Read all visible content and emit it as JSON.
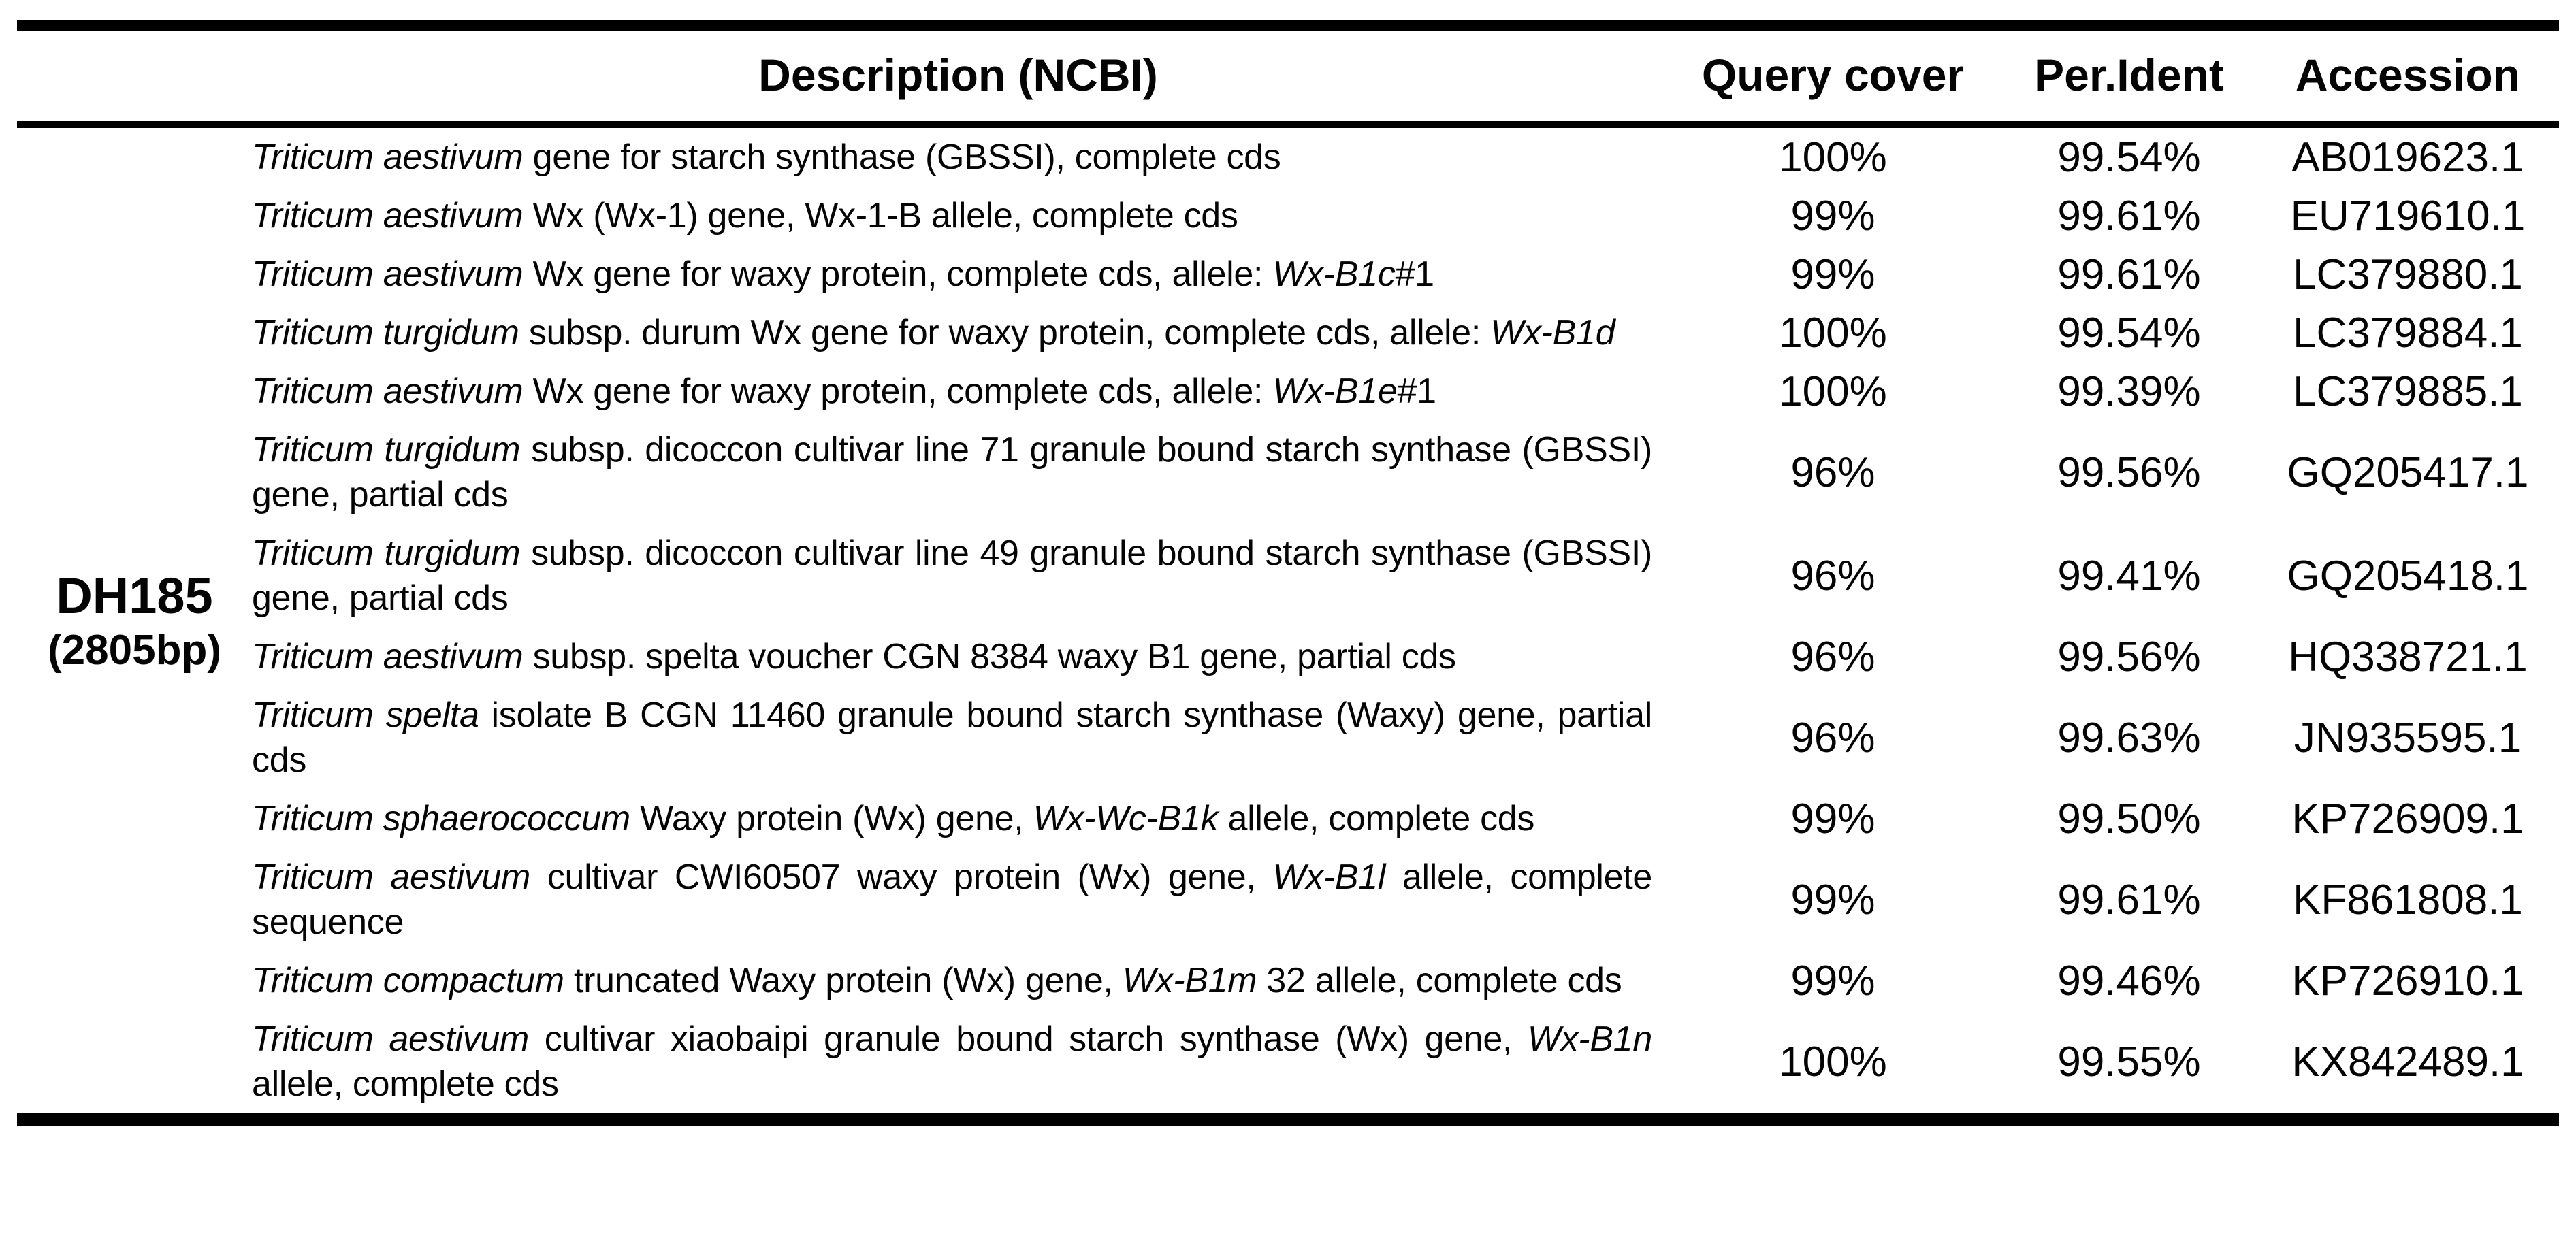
{
  "colors": {
    "background": "#ffffff",
    "text": "#040404",
    "rule": "#000000"
  },
  "table": {
    "stub": {
      "line1": "DH185",
      "line2": "(2805bp)"
    },
    "headers": {
      "description": "Description (NCBI)",
      "query_cover": "Query cover",
      "per_ident": "Per.Ident",
      "accession": "Accession"
    },
    "rows": [
      {
        "description": [
          {
            "i": true,
            "t": "Triticum aestivum"
          },
          {
            "t": " gene for starch synthase (GBSSI), complete cds"
          }
        ],
        "query_cover": "100%",
        "per_ident": "99.54%",
        "accession": "AB019623.1"
      },
      {
        "description": [
          {
            "i": true,
            "t": "Triticum aestivum"
          },
          {
            "t": " Wx (Wx-1) gene, Wx-1-B allele, complete cds"
          }
        ],
        "query_cover": "99%",
        "per_ident": "99.61%",
        "accession": "EU719610.1"
      },
      {
        "description": [
          {
            "i": true,
            "t": "Triticum aestivum"
          },
          {
            "t": " Wx gene for waxy protein, complete cds, allele: "
          },
          {
            "i": true,
            "t": "Wx-B1c"
          },
          {
            "t": "#1"
          }
        ],
        "query_cover": "99%",
        "per_ident": "99.61%",
        "accession": "LC379880.1"
      },
      {
        "description": [
          {
            "i": true,
            "t": "Triticum turgidum"
          },
          {
            "t": " subsp. durum Wx gene for waxy protein, complete cds, allele: "
          },
          {
            "i": true,
            "t": "Wx-B1d"
          }
        ],
        "query_cover": "100%",
        "per_ident": "99.54%",
        "accession": "LC379884.1"
      },
      {
        "description": [
          {
            "i": true,
            "t": "Triticum aestivum"
          },
          {
            "t": " Wx gene for waxy protein, complete cds, allele: "
          },
          {
            "i": true,
            "t": "Wx-B1e"
          },
          {
            "t": "#1"
          }
        ],
        "query_cover": "100%",
        "per_ident": "99.39%",
        "accession": "LC379885.1"
      },
      {
        "description": [
          {
            "i": true,
            "t": "Triticum turgidum"
          },
          {
            "t": " subsp. dicoccon cultivar line 71 granule bound starch synthase (GBSSI) gene, partial cds"
          }
        ],
        "query_cover": "96%",
        "per_ident": "99.56%",
        "accession": "GQ205417.1"
      },
      {
        "description": [
          {
            "i": true,
            "t": "Triticum turgidum"
          },
          {
            "t": " subsp. dicoccon cultivar line 49 granule bound starch synthase (GBSSI) gene, partial cds"
          }
        ],
        "query_cover": "96%",
        "per_ident": "99.41%",
        "accession": "GQ205418.1"
      },
      {
        "description": [
          {
            "i": true,
            "t": "Triticum aestivum"
          },
          {
            "t": " subsp. spelta voucher CGN 8384 waxy B1 gene, partial cds"
          }
        ],
        "query_cover": "96%",
        "per_ident": "99.56%",
        "accession": "HQ338721.1"
      },
      {
        "description": [
          {
            "i": true,
            "t": "Triticum spelta"
          },
          {
            "t": " isolate B CGN 11460 granule bound starch synthase (Waxy) gene, partial cds"
          }
        ],
        "query_cover": "96%",
        "per_ident": "99.63%",
        "accession": "JN935595.1"
      },
      {
        "description": [
          {
            "i": true,
            "t": "Triticum sphaerococcum"
          },
          {
            "t": " Waxy protein (Wx) gene, "
          },
          {
            "i": true,
            "t": "Wx-Wc-B1k"
          },
          {
            "t": " allele, complete cds"
          }
        ],
        "query_cover": "99%",
        "per_ident": "99.50%",
        "accession": "KP726909.1"
      },
      {
        "description": [
          {
            "i": true,
            "t": "Triticum aestivum"
          },
          {
            "t": " cultivar CWI60507 waxy protein (Wx) gene, "
          },
          {
            "i": true,
            "t": "Wx-B1l"
          },
          {
            "t": " allele, complete sequence"
          }
        ],
        "query_cover": "99%",
        "per_ident": "99.61%",
        "accession": "KF861808.1"
      },
      {
        "description": [
          {
            "i": true,
            "t": "Triticum compactum"
          },
          {
            "t": " truncated Waxy protein (Wx) gene, "
          },
          {
            "i": true,
            "t": "Wx-B1m"
          },
          {
            "t": " 32 allele, complete cds"
          }
        ],
        "query_cover": "99%",
        "per_ident": "99.46%",
        "accession": "KP726910.1"
      },
      {
        "description": [
          {
            "i": true,
            "t": "Triticum aestivum"
          },
          {
            "t": " cultivar xiaobaipi granule bound starch synthase (Wx) gene, "
          },
          {
            "i": true,
            "t": "Wx-B1n"
          },
          {
            "t": " allele, complete cds"
          }
        ],
        "query_cover": "100%",
        "per_ident": "99.55%",
        "accession": "KX842489.1"
      }
    ]
  }
}
